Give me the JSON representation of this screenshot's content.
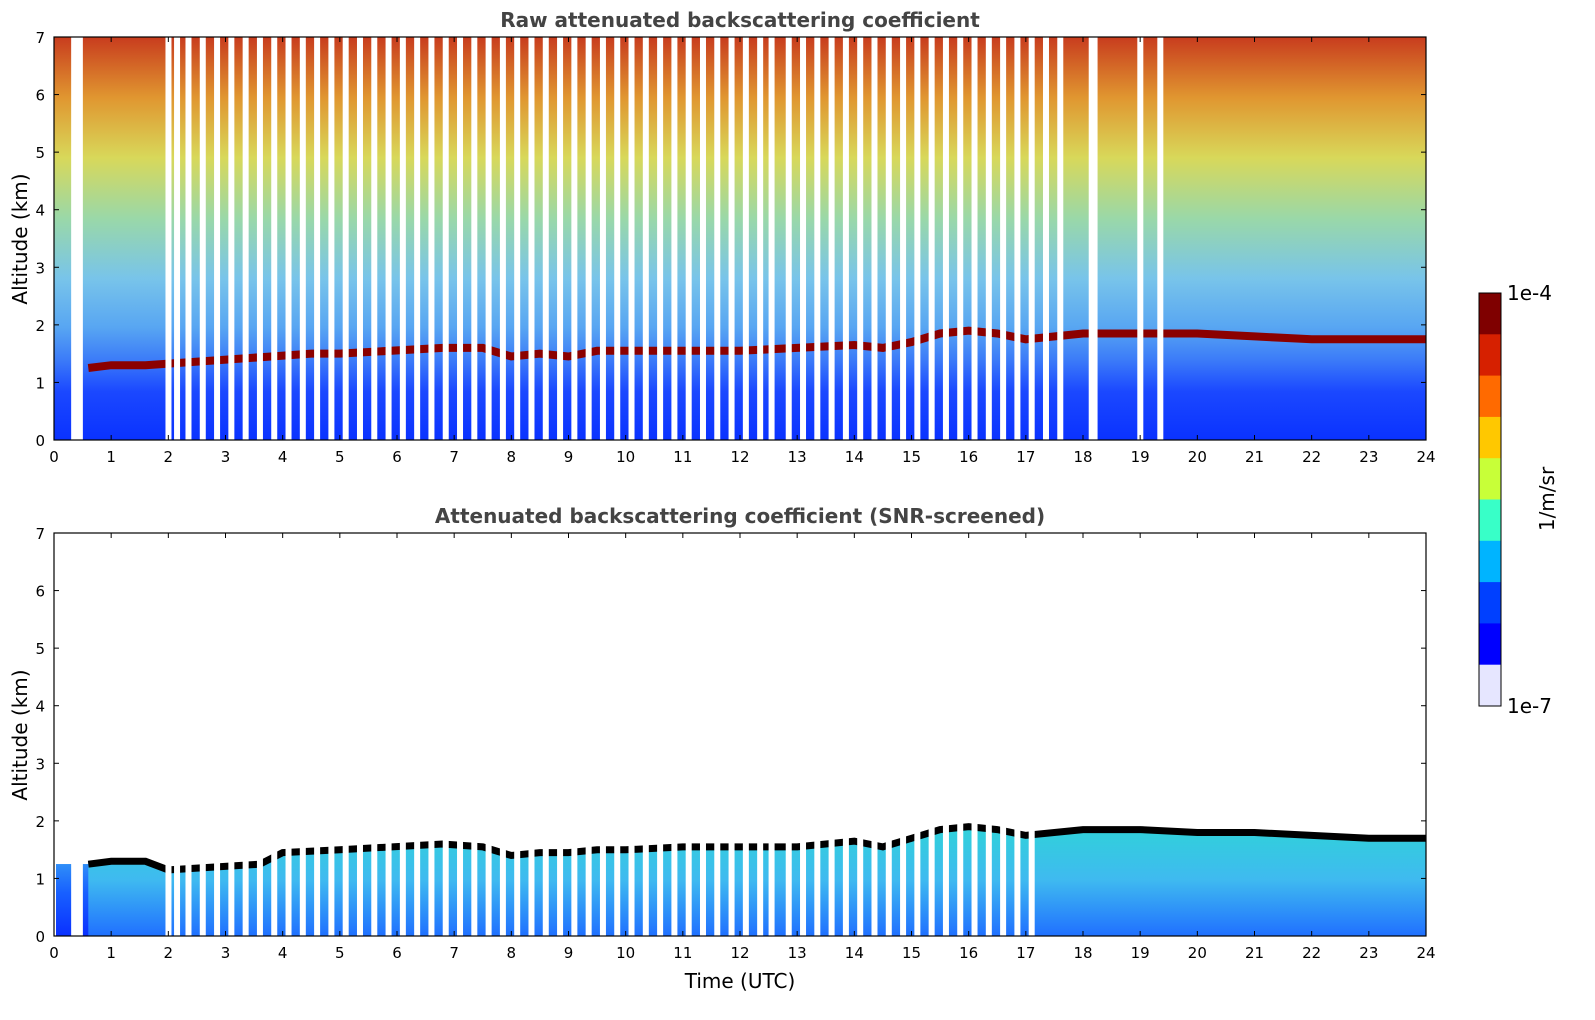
{
  "chart_data": [
    {
      "type": "heatmap",
      "title": "Raw attenuated backscattering coefficient",
      "xlabel": "",
      "ylabel": "Altitude (km)",
      "xlim": [
        0,
        24
      ],
      "ylim": [
        0,
        7
      ],
      "xticks": [
        "0",
        "1",
        "2",
        "3",
        "4",
        "5",
        "6",
        "7",
        "8",
        "9",
        "10",
        "11",
        "12",
        "13",
        "14",
        "15",
        "16",
        "17",
        "18",
        "19",
        "20",
        "21",
        "22",
        "23",
        "24"
      ],
      "yticks": [
        "0",
        "1",
        "2",
        "3",
        "4",
        "5",
        "6",
        "7"
      ],
      "data_gaps_hours": [
        0.3,
        0.4,
        1.95,
        2.1,
        2.3,
        2.55,
        2.8,
        3.05,
        3.3,
        3.55,
        3.8,
        4.05,
        4.3,
        4.55,
        4.8,
        5.05,
        5.3,
        5.55,
        5.8,
        6.05,
        6.3,
        6.55,
        6.8,
        7.05,
        7.3,
        7.55,
        7.8,
        8.05,
        8.3,
        8.55,
        8.8,
        9.05,
        9.3,
        9.55,
        9.8,
        10.05,
        10.3,
        10.55,
        10.8,
        11.05,
        11.3,
        11.55,
        11.8,
        12.05,
        12.3,
        12.5,
        12.8,
        13.05,
        13.3,
        13.55,
        13.8,
        14.05,
        14.3,
        14.55,
        14.8,
        15.05,
        15.3,
        15.55,
        15.8,
        16.05,
        16.3,
        16.55,
        16.8,
        17.05,
        17.3,
        17.55,
        18.1,
        18.15,
        18.95,
        19.3
      ],
      "boundary_layer_top_km": {
        "x": [
          0.6,
          1.0,
          1.6,
          3.8,
          4.5,
          5.0,
          6.8,
          7.5,
          8.0,
          8.5,
          9.0,
          9.5,
          10.0,
          11.0,
          12.0,
          13.0,
          14.0,
          14.5,
          15.0,
          15.5,
          16.0,
          16.5,
          17.0,
          18.0,
          19.0,
          20.0,
          21.0,
          22.0,
          23.0,
          24.0
        ],
        "y": [
          1.25,
          1.3,
          1.3,
          1.45,
          1.5,
          1.5,
          1.6,
          1.6,
          1.45,
          1.5,
          1.45,
          1.55,
          1.55,
          1.55,
          1.55,
          1.6,
          1.65,
          1.6,
          1.7,
          1.85,
          1.9,
          1.85,
          1.75,
          1.85,
          1.85,
          1.85,
          1.8,
          1.75,
          1.75,
          1.75
        ]
      }
    },
    {
      "type": "heatmap",
      "title": "Attenuated backscattering coefficient (SNR-screened)",
      "xlabel": "Time (UTC)",
      "ylabel": "Altitude (km)",
      "xlim": [
        0,
        24
      ],
      "ylim": [
        0,
        7
      ],
      "xticks": [
        "0",
        "1",
        "2",
        "3",
        "4",
        "5",
        "6",
        "7",
        "8",
        "9",
        "10",
        "11",
        "12",
        "13",
        "14",
        "15",
        "16",
        "17",
        "18",
        "19",
        "20",
        "21",
        "22",
        "23",
        "24"
      ],
      "yticks": [
        "0",
        "1",
        "2",
        "3",
        "4",
        "5",
        "6",
        "7"
      ],
      "screened_layer_top_km": {
        "x": [
          0.6,
          1.0,
          1.6,
          2.0,
          3.6,
          4.0,
          5.0,
          6.8,
          7.5,
          8.0,
          8.5,
          9.0,
          9.5,
          10.0,
          11.0,
          12.0,
          13.0,
          14.0,
          14.5,
          15.0,
          15.5,
          16.0,
          16.5,
          17.0,
          18.0,
          19.0,
          20.0,
          21.0,
          22.0,
          23.0,
          24.0
        ],
        "y": [
          1.3,
          1.35,
          1.35,
          1.2,
          1.3,
          1.5,
          1.55,
          1.65,
          1.6,
          1.45,
          1.5,
          1.5,
          1.55,
          1.55,
          1.6,
          1.6,
          1.6,
          1.7,
          1.6,
          1.75,
          1.9,
          1.95,
          1.9,
          1.8,
          1.9,
          1.9,
          1.85,
          1.85,
          1.8,
          1.75,
          1.75
        ]
      }
    }
  ],
  "colorbar": {
    "label": "1/m/sr",
    "max_label": "1e-4",
    "min_label": "1e-7",
    "scale": "log",
    "colors": [
      "#7f0000",
      "#d62000",
      "#ff6a00",
      "#ffc800",
      "#c8ff38",
      "#38ffc8",
      "#00b4ff",
      "#0040ff",
      "#0000ff",
      "#e6e6ff"
    ]
  }
}
